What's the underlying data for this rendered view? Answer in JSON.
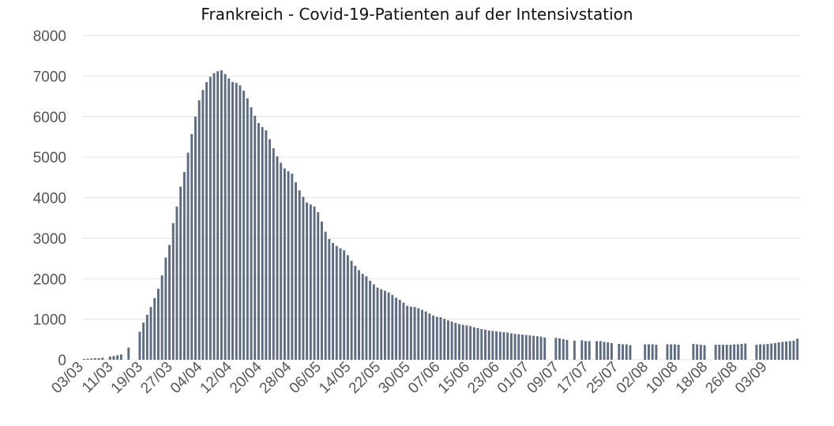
{
  "chart_data": {
    "type": "bar",
    "title": "Frankreich - Covid-19-Patienten auf der Intensivstation",
    "xlabel": "",
    "ylabel": "",
    "ylim": [
      0,
      8000
    ],
    "yticks": [
      0,
      1000,
      2000,
      3000,
      4000,
      5000,
      6000,
      7000,
      8000
    ],
    "grid": "horizontal",
    "legend": "none",
    "color": "#5f6b80",
    "xtick_labels": [
      "03/03",
      "11/03",
      "19/03",
      "27/03",
      "04/04",
      "12/04",
      "20/04",
      "28/04",
      "06/05",
      "14/05",
      "22/05",
      "30/05",
      "07/06",
      "15/06",
      "23/06",
      "01/07",
      "09/07",
      "17/07",
      "25/07",
      "02/08",
      "10/08",
      "18/08",
      "26/08",
      "03/09"
    ],
    "xtick_every": 8,
    "start_date": "03/03",
    "values": [
      20,
      25,
      30,
      35,
      40,
      50,
      null,
      80,
      90,
      110,
      130,
      null,
      300,
      null,
      null,
      690,
      920,
      1110,
      1300,
      1520,
      1750,
      2080,
      2520,
      2830,
      3370,
      3780,
      4270,
      4630,
      5110,
      5570,
      6000,
      6400,
      6660,
      6850,
      6980,
      7070,
      7120,
      7140,
      7050,
      6940,
      6850,
      6830,
      6770,
      6640,
      6450,
      6230,
      6020,
      5840,
      5740,
      5660,
      5440,
      5220,
      5020,
      4860,
      4720,
      4650,
      4590,
      4380,
      4180,
      4020,
      3880,
      3830,
      3780,
      3640,
      3410,
      3160,
      2980,
      2880,
      2810,
      2750,
      2700,
      2580,
      2440,
      2320,
      2210,
      2120,
      2060,
      1950,
      1860,
      1780,
      1740,
      1700,
      1660,
      1600,
      1530,
      1480,
      1410,
      1330,
      1310,
      1300,
      1270,
      1230,
      1190,
      1140,
      1090,
      1060,
      1050,
      1010,
      970,
      940,
      910,
      880,
      860,
      850,
      830,
      800,
      780,
      760,
      740,
      720,
      710,
      700,
      690,
      680,
      670,
      650,
      640,
      630,
      620,
      610,
      600,
      590,
      580,
      570,
      550,
      null,
      null,
      540,
      530,
      510,
      490,
      null,
      470,
      null,
      480,
      460,
      460,
      null,
      460,
      460,
      440,
      430,
      410,
      null,
      390,
      380,
      380,
      360,
      null,
      null,
      null,
      380,
      380,
      380,
      370,
      null,
      null,
      380,
      380,
      380,
      370,
      null,
      null,
      null,
      390,
      380,
      370,
      360,
      null,
      null,
      370,
      370,
      370,
      370,
      370,
      380,
      380,
      390,
      400,
      null,
      null,
      370,
      380,
      380,
      390,
      400,
      410,
      430,
      440,
      450,
      460,
      470,
      520
    ]
  }
}
